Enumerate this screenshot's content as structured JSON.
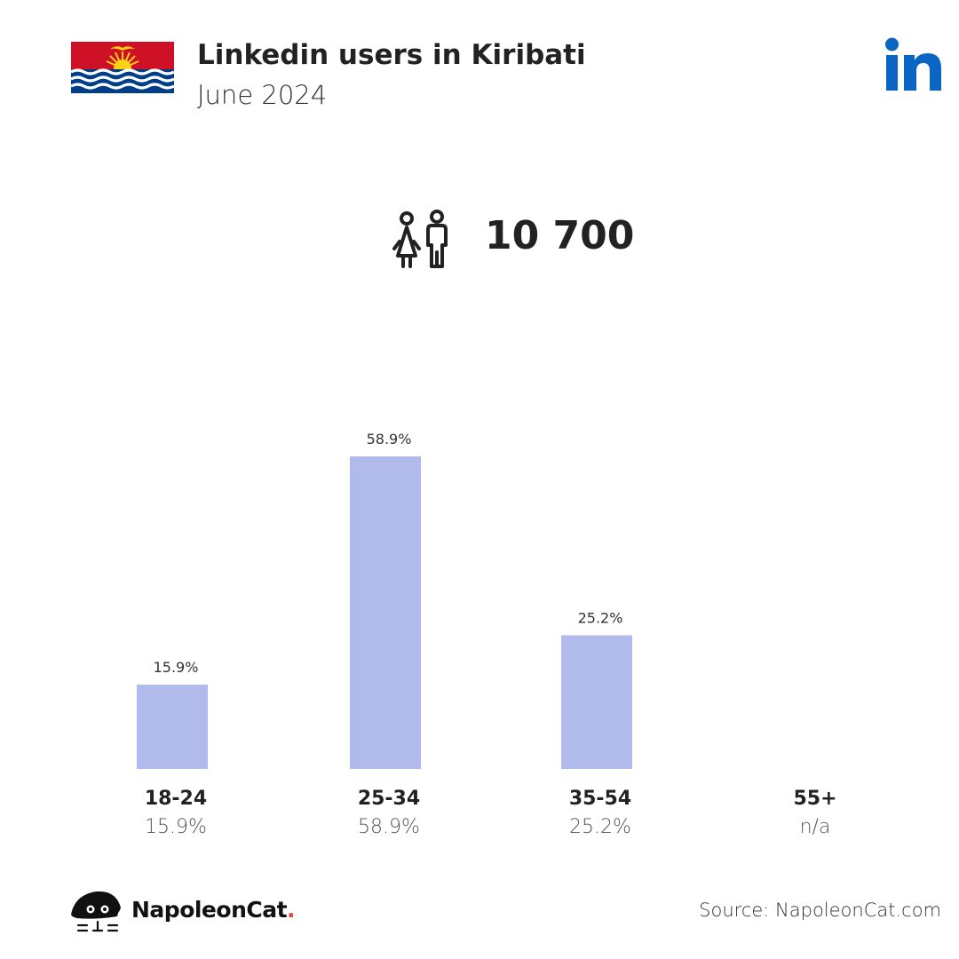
{
  "header": {
    "title": "Linkedin users in Kiribati",
    "subtitle": "June 2024"
  },
  "summary": {
    "total_users": "10 700"
  },
  "colors": {
    "bar": "#b0baeb",
    "linkedin_blue": "#0a66c2",
    "flag_red": "#ce1126",
    "flag_blue": "#003f87",
    "flag_gold": "#fcd116"
  },
  "icons": {
    "flag": "kiribati-flag-icon",
    "brand": "linkedin-logo-icon",
    "users": "users-icon",
    "footer": "napoleoncat-logo-icon"
  },
  "chart_data": {
    "type": "bar",
    "categories": [
      "18-24",
      "25-34",
      "35-54",
      "55+"
    ],
    "values": [
      15.9,
      58.9,
      25.2,
      null
    ],
    "data_labels": [
      "15.9%",
      "58.9%",
      "25.2%",
      ""
    ],
    "category_values": [
      "15.9%",
      "58.9%",
      "25.2%",
      "n/a"
    ],
    "ylim": [
      0,
      58.9
    ],
    "grid": false
  },
  "footer": {
    "brand_name": "NapoleonCat",
    "brand_dot": ".",
    "source": "Source: NapoleonCat.com"
  }
}
